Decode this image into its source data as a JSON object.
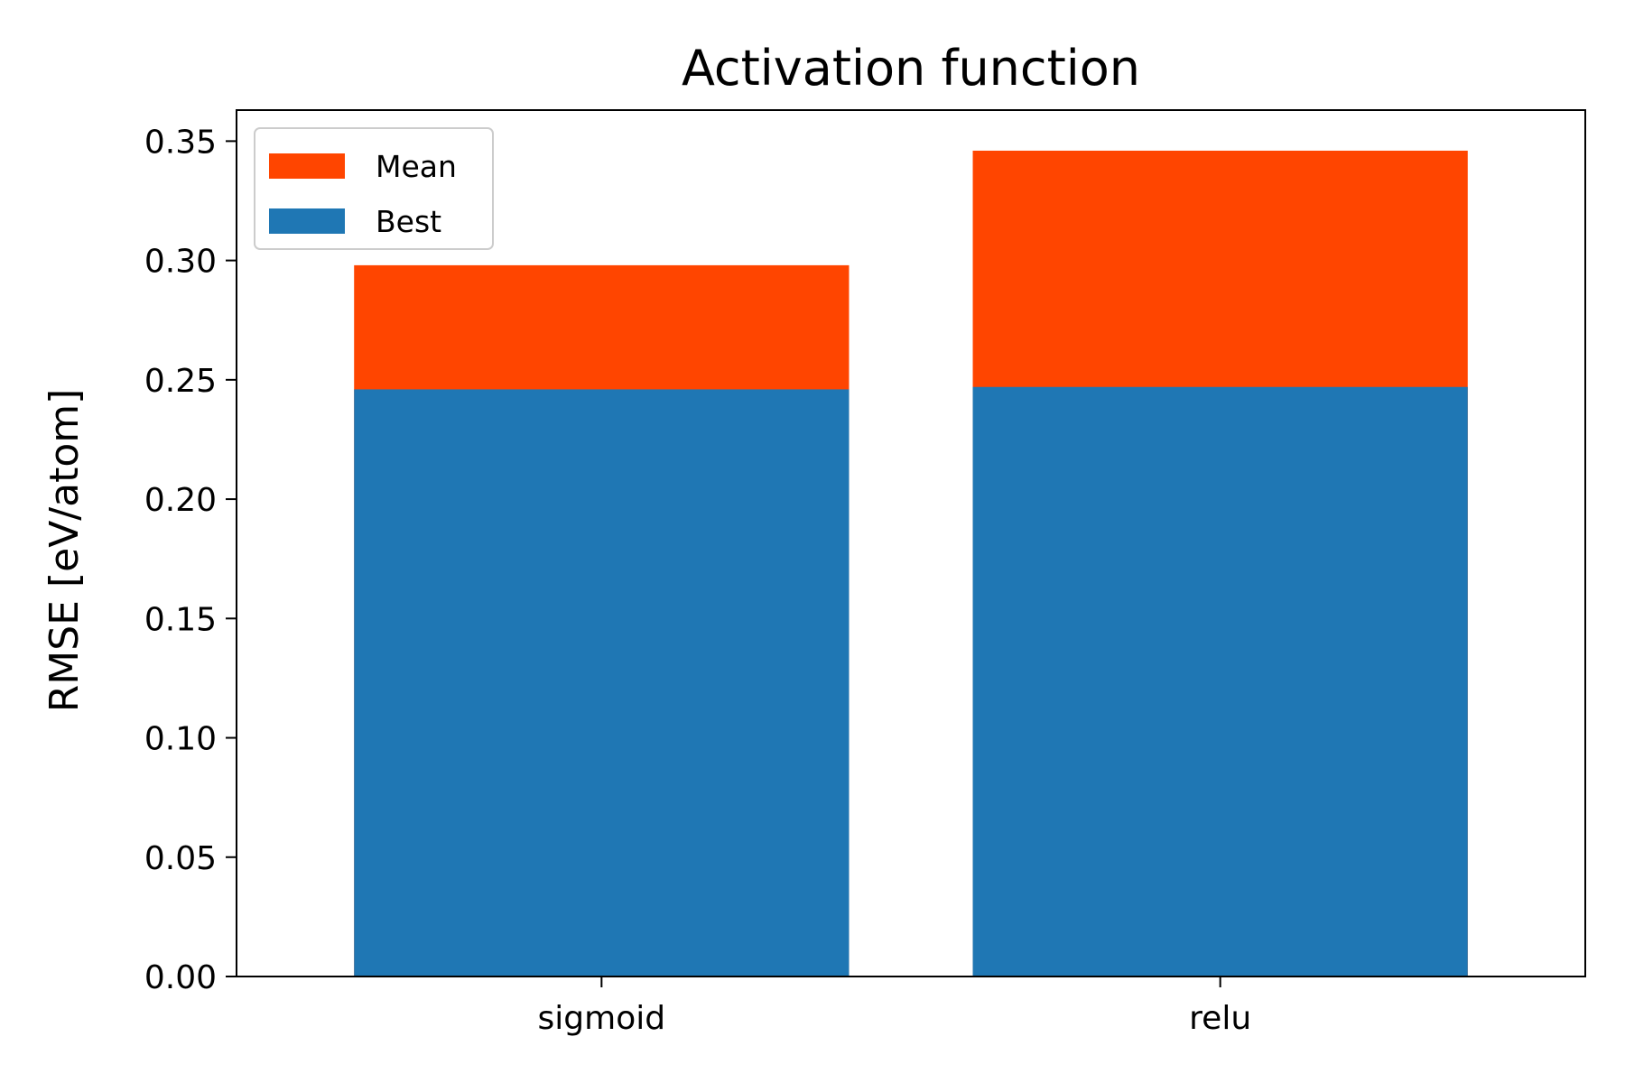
{
  "chart_data": {
    "type": "bar",
    "stacked": false,
    "title": "Activation function",
    "xlabel": "",
    "ylabel": "RMSE [eV/atom]",
    "categories": [
      "sigmoid",
      "relu"
    ],
    "series": [
      {
        "name": "Mean",
        "values": [
          0.298,
          0.346
        ],
        "color": "#ff4500"
      },
      {
        "name": "Best",
        "values": [
          0.246,
          0.247
        ],
        "color": "#1f77b4"
      }
    ],
    "ylim": [
      0,
      0.363
    ],
    "yticks": [
      "0.00",
      "0.05",
      "0.10",
      "0.15",
      "0.20",
      "0.25",
      "0.30",
      "0.35"
    ],
    "grid": false,
    "legend_position": "top-left"
  }
}
